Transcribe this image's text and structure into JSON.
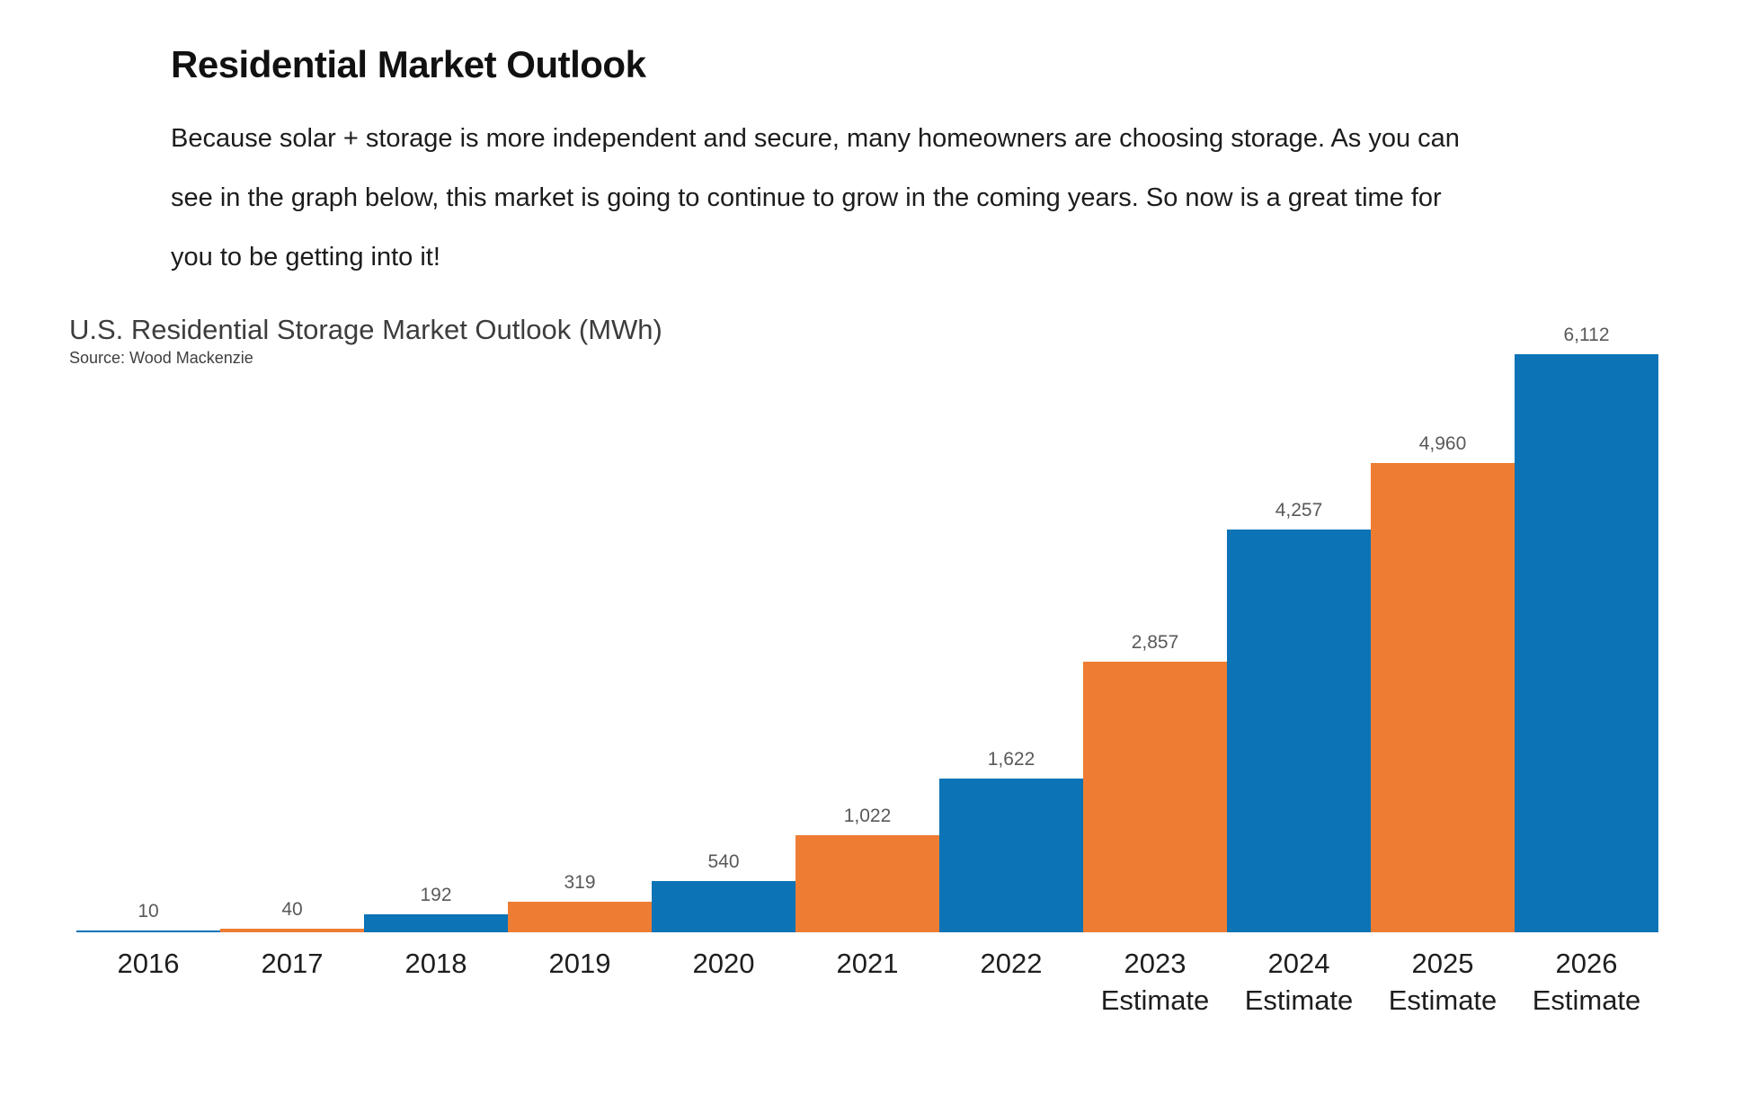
{
  "header": {
    "title": "Residential Market Outlook",
    "paragraph": "Because solar + storage is more independent and secure, many homeowners are choosing storage. As you can see in the graph below, this market is going to continue to grow in the coming years. So now is a great time for you to be getting into it!"
  },
  "chart_data": {
    "type": "bar",
    "title": "U.S. Residential Storage Market Outlook (MWh)",
    "source": "Source: Wood Mackenzie",
    "categories": [
      "2016",
      "2017",
      "2018",
      "2019",
      "2020",
      "2021",
      "2022",
      "2023 Estimate",
      "2024 Estimate",
      "2025 Estimate",
      "2026 Estimate"
    ],
    "values": [
      10,
      40,
      192,
      319,
      540,
      1022,
      1622,
      2857,
      4257,
      4960,
      6112
    ],
    "value_labels": [
      "10",
      "40",
      "192",
      "319",
      "540",
      "1,022",
      "1,622",
      "2,857",
      "4,257",
      "4,960",
      "6,112"
    ],
    "bar_colors": [
      "#0b73b6",
      "#ee7d33"
    ],
    "color_pattern": "alternating-by-year",
    "value_label_color": "#595959",
    "axis_label_color": "#1e1e1e",
    "xlabel": "",
    "ylabel": "",
    "ylim": [
      0,
      6500
    ],
    "grid": false,
    "legend": "none",
    "bar_gap": 0
  }
}
